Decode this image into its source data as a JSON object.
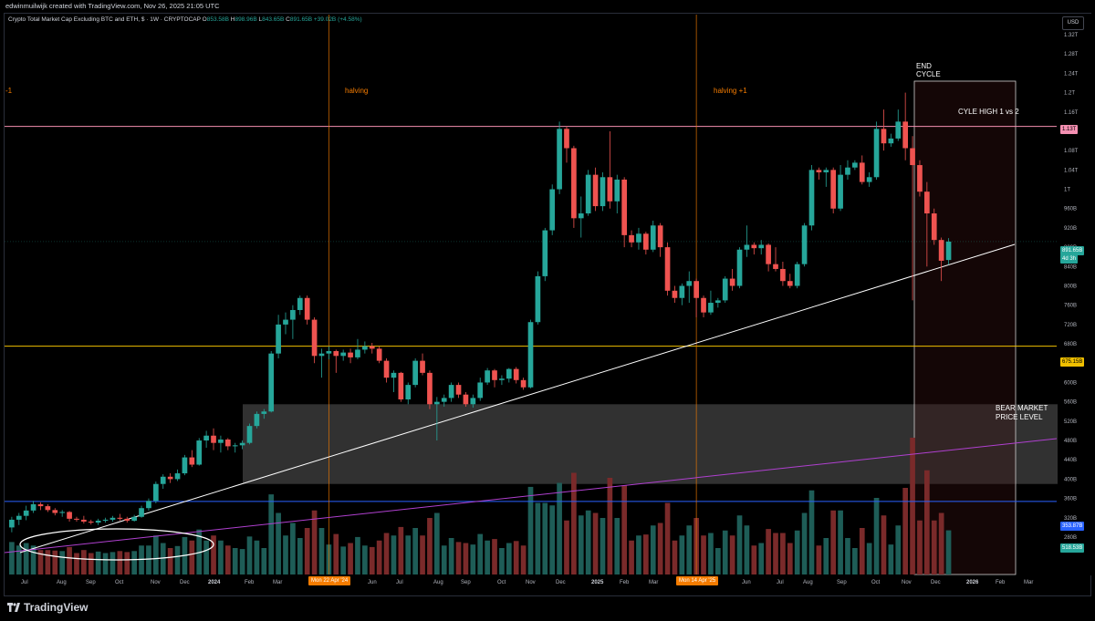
{
  "header": {
    "created_by": "edwinmuilwijk created with TradingView.com, Nov 26, 2025 21:05 UTC"
  },
  "legend": {
    "symbol": "Crypto Total Market Cap Excluding BTC and ETH, $ · 1W · CRYPTOCAP",
    "open_label": "O",
    "open": "853.58B",
    "high_label": "H",
    "high": "898.96B",
    "low_label": "L",
    "low": "843.65B",
    "close_label": "C",
    "close": "891.65B",
    "change": "+39.02B (+4.58%)"
  },
  "currency_button": "USD",
  "price_axis": {
    "ticks": [
      "1.32T",
      "1.28T",
      "1.24T",
      "1.2T",
      "1.16T",
      "1.12T",
      "1.08T",
      "1.04T",
      "1T",
      "960B",
      "920B",
      "880B",
      "840B",
      "800B",
      "760B",
      "720B",
      "680B",
      "640B",
      "600B",
      "560B",
      "520B",
      "480B",
      "440B",
      "400B",
      "360B",
      "320B",
      "280B"
    ]
  },
  "price_tags": {
    "cycle_high": "1.13T",
    "current": "891.65B",
    "countdown": "4d 3h",
    "support": "675.15B",
    "blue_line": "353.87B",
    "volume": "518.53B"
  },
  "time_axis": {
    "labels": [
      "Jul",
      "Aug",
      "Sep",
      "Oct",
      "Nov",
      "Dec",
      "2024",
      "Feb",
      "Mar",
      "Jun",
      "Jul",
      "Aug",
      "Sep",
      "Oct",
      "Nov",
      "Dec",
      "2025",
      "Feb",
      "Mar",
      "Jun",
      "Jul",
      "Aug",
      "Sep",
      "Oct",
      "Nov",
      "Dec",
      "2026",
      "Feb",
      "Mar"
    ],
    "date_box_1": "Mon 22 Apr '24",
    "date_box_2": "Mon 14 Apr '25"
  },
  "annotations": {
    "prev_halving": "-1",
    "halving": "halving",
    "halving_plus_one": "halving +1",
    "end_cycle_1": "END",
    "end_cycle_2": "CYCLE",
    "cycle_high": "CYLE HIGH 1 vs 2",
    "bear_market_1": "BEAR MARKET",
    "bear_market_2": "PRICE LEVEL"
  },
  "footer": {
    "brand": "TradingView"
  },
  "colors": {
    "up": "#26a69a",
    "down": "#ef5350",
    "vol_up": "#1e5d57",
    "vol_down": "#7a2a2a",
    "cycle_high_line": "#f48fb1",
    "support_line": "#f0c000",
    "blue_line": "#2962ff",
    "halving": "#f57c00",
    "purple_line": "#b040d0"
  },
  "chart_data": {
    "type": "candlestick",
    "title": "Crypto Total Market Cap Excluding BTC and ETH, $ · 1W · CRYPTOCAP",
    "ylim": [
      260,
      1340
    ],
    "yunit": "B USD",
    "x_range": [
      "2023-06-12",
      "2026-03-30"
    ],
    "candles": [
      {
        "t": "2023-06-19",
        "o": 300,
        "h": 322,
        "l": 290,
        "c": 316
      },
      {
        "t": "2023-06-26",
        "o": 316,
        "h": 330,
        "l": 305,
        "c": 324
      },
      {
        "t": "2023-07-03",
        "o": 324,
        "h": 345,
        "l": 315,
        "c": 335
      },
      {
        "t": "2023-07-10",
        "o": 335,
        "h": 355,
        "l": 330,
        "c": 348
      },
      {
        "t": "2023-07-17",
        "o": 348,
        "h": 352,
        "l": 336,
        "c": 344
      },
      {
        "t": "2023-07-24",
        "o": 344,
        "h": 348,
        "l": 332,
        "c": 336
      },
      {
        "t": "2023-07-31",
        "o": 336,
        "h": 340,
        "l": 325,
        "c": 330
      },
      {
        "t": "2023-08-07",
        "o": 330,
        "h": 336,
        "l": 322,
        "c": 332
      },
      {
        "t": "2023-08-14",
        "o": 332,
        "h": 334,
        "l": 312,
        "c": 318
      },
      {
        "t": "2023-08-21",
        "o": 318,
        "h": 322,
        "l": 312,
        "c": 316
      },
      {
        "t": "2023-08-28",
        "o": 316,
        "h": 324,
        "l": 308,
        "c": 312
      },
      {
        "t": "2023-09-04",
        "o": 312,
        "h": 316,
        "l": 306,
        "c": 310
      },
      {
        "t": "2023-09-11",
        "o": 310,
        "h": 318,
        "l": 305,
        "c": 314
      },
      {
        "t": "2023-09-18",
        "o": 314,
        "h": 320,
        "l": 310,
        "c": 316
      },
      {
        "t": "2023-09-25",
        "o": 316,
        "h": 324,
        "l": 312,
        "c": 320
      },
      {
        "t": "2023-10-02",
        "o": 320,
        "h": 328,
        "l": 314,
        "c": 318
      },
      {
        "t": "2023-10-09",
        "o": 318,
        "h": 322,
        "l": 310,
        "c": 314
      },
      {
        "t": "2023-10-16",
        "o": 314,
        "h": 326,
        "l": 312,
        "c": 322
      },
      {
        "t": "2023-10-23",
        "o": 322,
        "h": 345,
        "l": 320,
        "c": 340
      },
      {
        "t": "2023-10-30",
        "o": 340,
        "h": 360,
        "l": 335,
        "c": 355
      },
      {
        "t": "2023-11-06",
        "o": 355,
        "h": 395,
        "l": 350,
        "c": 390
      },
      {
        "t": "2023-11-13",
        "o": 390,
        "h": 410,
        "l": 380,
        "c": 405
      },
      {
        "t": "2023-11-20",
        "o": 405,
        "h": 412,
        "l": 392,
        "c": 400
      },
      {
        "t": "2023-11-27",
        "o": 400,
        "h": 420,
        "l": 396,
        "c": 412
      },
      {
        "t": "2023-12-04",
        "o": 412,
        "h": 450,
        "l": 408,
        "c": 445
      },
      {
        "t": "2023-12-11",
        "o": 445,
        "h": 460,
        "l": 425,
        "c": 430
      },
      {
        "t": "2023-12-18",
        "o": 430,
        "h": 485,
        "l": 428,
        "c": 480
      },
      {
        "t": "2023-12-25",
        "o": 480,
        "h": 500,
        "l": 465,
        "c": 490
      },
      {
        "t": "2024-01-01",
        "o": 490,
        "h": 505,
        "l": 460,
        "c": 475
      },
      {
        "t": "2024-01-08",
        "o": 475,
        "h": 490,
        "l": 455,
        "c": 482
      },
      {
        "t": "2024-01-15",
        "o": 482,
        "h": 485,
        "l": 460,
        "c": 468
      },
      {
        "t": "2024-01-22",
        "o": 468,
        "h": 475,
        "l": 455,
        "c": 470
      },
      {
        "t": "2024-01-29",
        "o": 470,
        "h": 480,
        "l": 462,
        "c": 475
      },
      {
        "t": "2024-02-05",
        "o": 475,
        "h": 515,
        "l": 472,
        "c": 510
      },
      {
        "t": "2024-02-12",
        "o": 510,
        "h": 540,
        "l": 505,
        "c": 535
      },
      {
        "t": "2024-02-19",
        "o": 535,
        "h": 545,
        "l": 525,
        "c": 540
      },
      {
        "t": "2024-02-26",
        "o": 540,
        "h": 665,
        "l": 538,
        "c": 660
      },
      {
        "t": "2024-03-04",
        "o": 660,
        "h": 740,
        "l": 650,
        "c": 720
      },
      {
        "t": "2024-03-11",
        "o": 720,
        "h": 745,
        "l": 700,
        "c": 730
      },
      {
        "t": "2024-03-18",
        "o": 730,
        "h": 760,
        "l": 690,
        "c": 750
      },
      {
        "t": "2024-03-25",
        "o": 750,
        "h": 780,
        "l": 740,
        "c": 775
      },
      {
        "t": "2024-04-01",
        "o": 775,
        "h": 780,
        "l": 720,
        "c": 730
      },
      {
        "t": "2024-04-08",
        "o": 730,
        "h": 735,
        "l": 640,
        "c": 655
      },
      {
        "t": "2024-04-15",
        "o": 655,
        "h": 670,
        "l": 610,
        "c": 660
      },
      {
        "t": "2024-04-22",
        "o": 660,
        "h": 675,
        "l": 648,
        "c": 665
      },
      {
        "t": "2024-04-29",
        "o": 665,
        "h": 668,
        "l": 620,
        "c": 655
      },
      {
        "t": "2024-05-06",
        "o": 655,
        "h": 668,
        "l": 645,
        "c": 662
      },
      {
        "t": "2024-05-13",
        "o": 662,
        "h": 670,
        "l": 640,
        "c": 652
      },
      {
        "t": "2024-05-20",
        "o": 652,
        "h": 690,
        "l": 648,
        "c": 668
      },
      {
        "t": "2024-05-27",
        "o": 668,
        "h": 685,
        "l": 660,
        "c": 675
      },
      {
        "t": "2024-06-03",
        "o": 675,
        "h": 682,
        "l": 660,
        "c": 670
      },
      {
        "t": "2024-06-10",
        "o": 670,
        "h": 675,
        "l": 640,
        "c": 645
      },
      {
        "t": "2024-06-17",
        "o": 645,
        "h": 650,
        "l": 600,
        "c": 610
      },
      {
        "t": "2024-06-24",
        "o": 610,
        "h": 625,
        "l": 580,
        "c": 620
      },
      {
        "t": "2024-07-01",
        "o": 620,
        "h": 622,
        "l": 560,
        "c": 565
      },
      {
        "t": "2024-07-08",
        "o": 565,
        "h": 600,
        "l": 555,
        "c": 595
      },
      {
        "t": "2024-07-15",
        "o": 595,
        "h": 650,
        "l": 590,
        "c": 645
      },
      {
        "t": "2024-07-22",
        "o": 645,
        "h": 660,
        "l": 615,
        "c": 620
      },
      {
        "t": "2024-07-29",
        "o": 620,
        "h": 625,
        "l": 545,
        "c": 555
      },
      {
        "t": "2024-08-05",
        "o": 555,
        "h": 570,
        "l": 480,
        "c": 560
      },
      {
        "t": "2024-08-12",
        "o": 560,
        "h": 575,
        "l": 550,
        "c": 568
      },
      {
        "t": "2024-08-19",
        "o": 568,
        "h": 600,
        "l": 560,
        "c": 595
      },
      {
        "t": "2024-08-26",
        "o": 595,
        "h": 600,
        "l": 568,
        "c": 575
      },
      {
        "t": "2024-09-02",
        "o": 575,
        "h": 580,
        "l": 550,
        "c": 555
      },
      {
        "t": "2024-09-09",
        "o": 555,
        "h": 575,
        "l": 548,
        "c": 568
      },
      {
        "t": "2024-09-16",
        "o": 568,
        "h": 610,
        "l": 562,
        "c": 600
      },
      {
        "t": "2024-09-23",
        "o": 600,
        "h": 630,
        "l": 595,
        "c": 625
      },
      {
        "t": "2024-09-30",
        "o": 625,
        "h": 628,
        "l": 590,
        "c": 605
      },
      {
        "t": "2024-10-07",
        "o": 605,
        "h": 615,
        "l": 595,
        "c": 608
      },
      {
        "t": "2024-10-14",
        "o": 608,
        "h": 630,
        "l": 600,
        "c": 628
      },
      {
        "t": "2024-10-21",
        "o": 628,
        "h": 632,
        "l": 598,
        "c": 605
      },
      {
        "t": "2024-10-28",
        "o": 605,
        "h": 610,
        "l": 585,
        "c": 590
      },
      {
        "t": "2024-11-04",
        "o": 590,
        "h": 730,
        "l": 588,
        "c": 725
      },
      {
        "t": "2024-11-11",
        "o": 725,
        "h": 830,
        "l": 720,
        "c": 820
      },
      {
        "t": "2024-11-18",
        "o": 820,
        "h": 920,
        "l": 810,
        "c": 915
      },
      {
        "t": "2024-11-25",
        "o": 915,
        "h": 1010,
        "l": 905,
        "c": 1000
      },
      {
        "t": "2024-12-02",
        "o": 1000,
        "h": 1140,
        "l": 990,
        "c": 1125
      },
      {
        "t": "2024-12-09",
        "o": 1125,
        "h": 1130,
        "l": 1055,
        "c": 1085
      },
      {
        "t": "2024-12-16",
        "o": 1085,
        "h": 1090,
        "l": 920,
        "c": 940
      },
      {
        "t": "2024-12-23",
        "o": 940,
        "h": 985,
        "l": 900,
        "c": 950
      },
      {
        "t": "2024-12-30",
        "o": 950,
        "h": 1040,
        "l": 945,
        "c": 1030
      },
      {
        "t": "2025-01-06",
        "o": 1030,
        "h": 1045,
        "l": 955,
        "c": 965
      },
      {
        "t": "2025-01-13",
        "o": 965,
        "h": 1035,
        "l": 955,
        "c": 1025
      },
      {
        "t": "2025-01-20",
        "o": 1025,
        "h": 1120,
        "l": 960,
        "c": 975
      },
      {
        "t": "2025-01-27",
        "o": 975,
        "h": 1030,
        "l": 950,
        "c": 1020
      },
      {
        "t": "2025-02-03",
        "o": 1020,
        "h": 1025,
        "l": 880,
        "c": 905
      },
      {
        "t": "2025-02-10",
        "o": 905,
        "h": 915,
        "l": 880,
        "c": 890
      },
      {
        "t": "2025-02-17",
        "o": 890,
        "h": 920,
        "l": 875,
        "c": 908
      },
      {
        "t": "2025-02-24",
        "o": 908,
        "h": 912,
        "l": 865,
        "c": 875
      },
      {
        "t": "2025-03-03",
        "o": 875,
        "h": 935,
        "l": 870,
        "c": 925
      },
      {
        "t": "2025-03-10",
        "o": 925,
        "h": 930,
        "l": 860,
        "c": 880
      },
      {
        "t": "2025-03-17",
        "o": 880,
        "h": 890,
        "l": 780,
        "c": 790
      },
      {
        "t": "2025-03-24",
        "o": 790,
        "h": 800,
        "l": 765,
        "c": 775
      },
      {
        "t": "2025-03-31",
        "o": 775,
        "h": 805,
        "l": 760,
        "c": 800
      },
      {
        "t": "2025-04-07",
        "o": 800,
        "h": 830,
        "l": 765,
        "c": 810
      },
      {
        "t": "2025-04-14",
        "o": 810,
        "h": 815,
        "l": 735,
        "c": 775
      },
      {
        "t": "2025-04-21",
        "o": 775,
        "h": 780,
        "l": 735,
        "c": 745
      },
      {
        "t": "2025-04-28",
        "o": 745,
        "h": 790,
        "l": 740,
        "c": 765
      },
      {
        "t": "2025-05-05",
        "o": 765,
        "h": 775,
        "l": 755,
        "c": 770
      },
      {
        "t": "2025-05-12",
        "o": 770,
        "h": 820,
        "l": 765,
        "c": 815
      },
      {
        "t": "2025-05-19",
        "o": 815,
        "h": 835,
        "l": 790,
        "c": 800
      },
      {
        "t": "2025-05-26",
        "o": 800,
        "h": 880,
        "l": 795,
        "c": 875
      },
      {
        "t": "2025-06-02",
        "o": 875,
        "h": 925,
        "l": 860,
        "c": 885
      },
      {
        "t": "2025-06-09",
        "o": 885,
        "h": 890,
        "l": 865,
        "c": 878
      },
      {
        "t": "2025-06-16",
        "o": 878,
        "h": 895,
        "l": 865,
        "c": 885
      },
      {
        "t": "2025-06-23",
        "o": 885,
        "h": 888,
        "l": 830,
        "c": 845
      },
      {
        "t": "2025-06-30",
        "o": 845,
        "h": 880,
        "l": 830,
        "c": 835
      },
      {
        "t": "2025-07-07",
        "o": 835,
        "h": 850,
        "l": 800,
        "c": 810
      },
      {
        "t": "2025-07-14",
        "o": 810,
        "h": 825,
        "l": 795,
        "c": 800
      },
      {
        "t": "2025-07-21",
        "o": 800,
        "h": 850,
        "l": 795,
        "c": 845
      },
      {
        "t": "2025-07-28",
        "o": 845,
        "h": 930,
        "l": 840,
        "c": 925
      },
      {
        "t": "2025-08-04",
        "o": 925,
        "h": 1050,
        "l": 915,
        "c": 1040
      },
      {
        "t": "2025-08-11",
        "o": 1040,
        "h": 1045,
        "l": 1020,
        "c": 1035
      },
      {
        "t": "2025-08-18",
        "o": 1035,
        "h": 1045,
        "l": 1005,
        "c": 1040
      },
      {
        "t": "2025-08-25",
        "o": 1040,
        "h": 1045,
        "l": 950,
        "c": 960
      },
      {
        "t": "2025-09-01",
        "o": 960,
        "h": 1050,
        "l": 955,
        "c": 1030
      },
      {
        "t": "2025-09-08",
        "o": 1030,
        "h": 1060,
        "l": 1020,
        "c": 1045
      },
      {
        "t": "2025-09-15",
        "o": 1045,
        "h": 1060,
        "l": 1040,
        "c": 1055
      },
      {
        "t": "2025-09-22",
        "o": 1055,
        "h": 1070,
        "l": 1010,
        "c": 1015
      },
      {
        "t": "2025-09-29",
        "o": 1015,
        "h": 1035,
        "l": 1005,
        "c": 1025
      },
      {
        "t": "2025-10-06",
        "o": 1025,
        "h": 1140,
        "l": 1020,
        "c": 1125
      },
      {
        "t": "2025-10-13",
        "o": 1125,
        "h": 1165,
        "l": 1080,
        "c": 1095
      },
      {
        "t": "2025-10-20",
        "o": 1095,
        "h": 1115,
        "l": 1088,
        "c": 1105
      },
      {
        "t": "2025-10-27",
        "o": 1105,
        "h": 1165,
        "l": 1100,
        "c": 1140
      },
      {
        "t": "2025-11-03",
        "o": 1140,
        "h": 1200,
        "l": 1060,
        "c": 1085
      },
      {
        "t": "2025-11-10",
        "o": 1085,
        "h": 1110,
        "l": 770,
        "c": 1050
      },
      {
        "t": "2025-11-17",
        "o": 1050,
        "h": 1060,
        "l": 985,
        "c": 995
      },
      {
        "t": "2025-11-24",
        "o": 995,
        "h": 1015,
        "l": 840,
        "c": 950
      },
      {
        "t": "2025-12-01",
        "o": 950,
        "h": 960,
        "l": 885,
        "c": 895
      },
      {
        "t": "2025-12-08",
        "o": 895,
        "h": 900,
        "l": 810,
        "c": 852
      },
      {
        "t": "2025-12-15",
        "o": 853.58,
        "h": 898.96,
        "l": 843.65,
        "c": 891.65
      }
    ],
    "horizontal_lines": [
      {
        "value": 1130,
        "label": "1.13T"
      },
      {
        "value": 675.15,
        "label": "675.15B"
      },
      {
        "value": 353.87,
        "label": "353.87B"
      }
    ],
    "vertical_lines": [
      {
        "date": "2024-04-22",
        "label": "halving"
      },
      {
        "date": "2025-04-14",
        "label": "halving +1"
      }
    ]
  }
}
